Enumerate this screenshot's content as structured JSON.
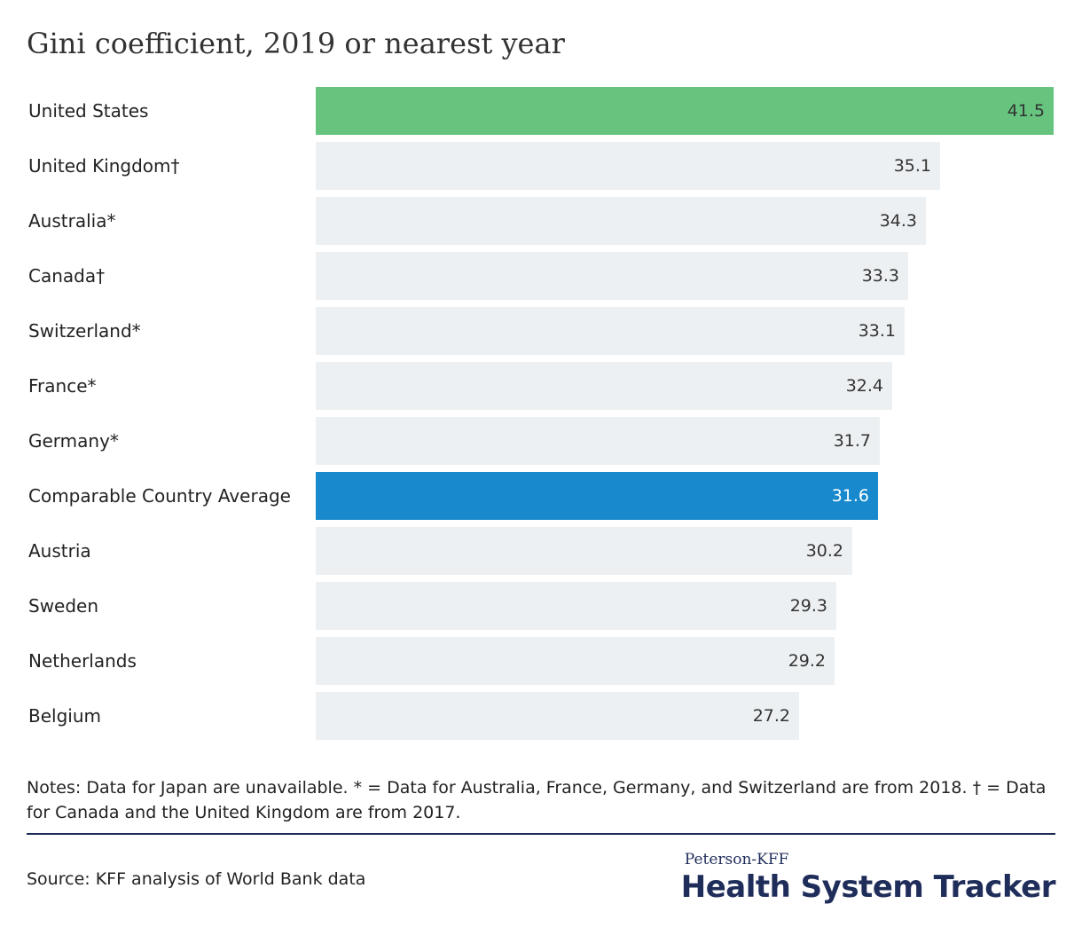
{
  "title": "Gini coefficient, 2019 or nearest year",
  "chart_data": {
    "type": "bar",
    "orientation": "horizontal",
    "title": "Gini coefficient, 2019 or nearest year",
    "categories": [
      "United States",
      "United Kingdom†",
      "Australia*",
      "Canada†",
      "Switzerland*",
      "France*",
      "Germany*",
      "Comparable Country Average",
      "Austria",
      "Sweden",
      "Netherlands",
      "Belgium"
    ],
    "values": [
      41.5,
      35.1,
      34.3,
      33.3,
      33.1,
      32.4,
      31.7,
      31.6,
      30.2,
      29.3,
      29.2,
      27.2
    ],
    "value_labels": [
      "41.5",
      "35.1",
      "34.3",
      "33.3",
      "33.1",
      "32.4",
      "31.7",
      "31.6",
      "30.2",
      "29.3",
      "29.2",
      "27.2"
    ],
    "colors": {
      "default": "#edf0f2",
      "United States": "#66c47e",
      "Comparable Country Average": "#1789cc"
    },
    "label_colors": {
      "default": "#333333",
      "highlight": "#ffffff"
    },
    "xlim": [
      0,
      41.5
    ],
    "grid": false,
    "legend": "none"
  },
  "notes": "Notes: Data for Japan are unavailable. * = Data for Australia, France, Germany, and Switzerland are from 2018. † = Data for Canada and the United Kingdom are from 2017.",
  "source": "Source: KFF analysis of World Bank data",
  "brand": {
    "top": "Peterson-KFF",
    "main": "Health System Tracker"
  }
}
